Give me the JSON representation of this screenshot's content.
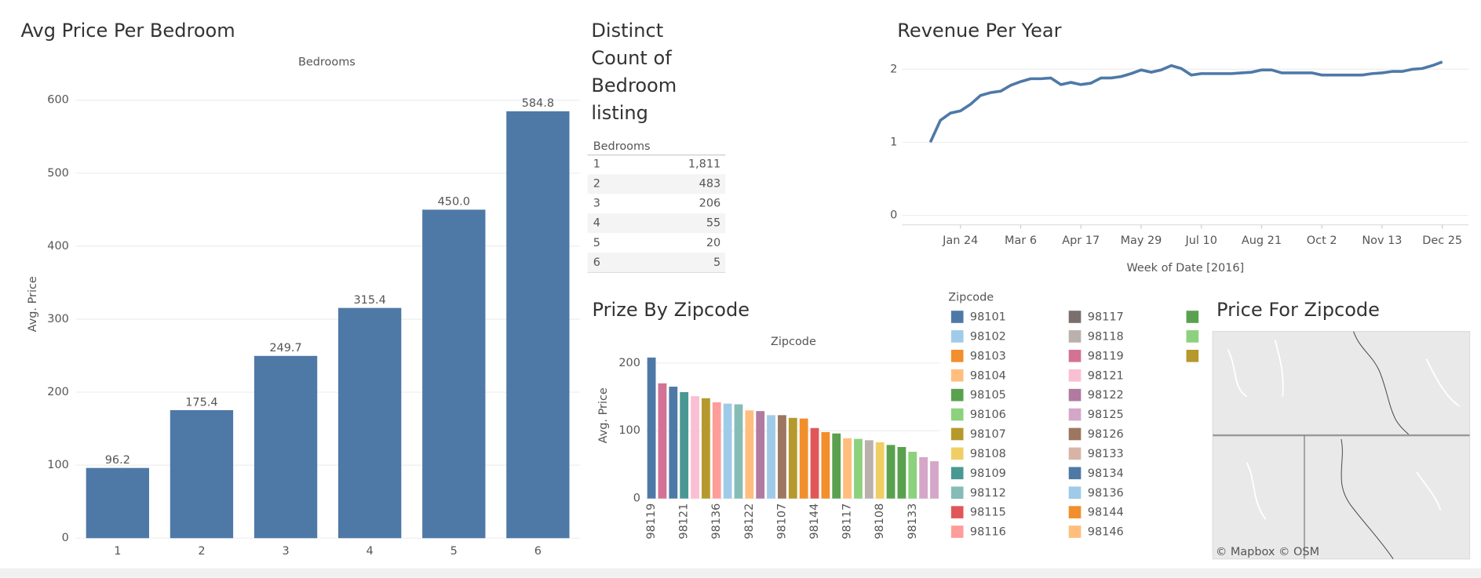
{
  "chart_data": [
    {
      "type": "bar",
      "title": "Avg Price Per Bedroom",
      "header": "Bedrooms",
      "y_label": "Avg. Price",
      "categories": [
        "1",
        "2",
        "3",
        "4",
        "5",
        "6"
      ],
      "values": [
        96.2,
        175.4,
        249.7,
        315.4,
        450.0,
        584.8
      ],
      "value_labels": [
        "96.2",
        "175.4",
        "249.7",
        "315.4",
        "450.0",
        "584.8"
      ],
      "color": "#4e79a7",
      "ylim": [
        0,
        640
      ],
      "yticks": [
        0,
        100,
        200,
        300,
        400,
        500,
        600
      ],
      "grid": true
    },
    {
      "type": "table",
      "title": "Distinct Count of Bedroom listing",
      "header": "Bedrooms",
      "rows": [
        [
          "1",
          "1,811"
        ],
        [
          "2",
          "483"
        ],
        [
          "3",
          "206"
        ],
        [
          "4",
          "55"
        ],
        [
          "5",
          "20"
        ],
        [
          "6",
          "5"
        ]
      ]
    },
    {
      "type": "line",
      "title": "Revenue Per Year",
      "x_label": "Week of Date [2016]",
      "x": [
        "Jan 3",
        "Jan 10",
        "Jan 17",
        "Jan 24",
        "Jan 31",
        "Feb 7",
        "Feb 14",
        "Feb 21",
        "Feb 28",
        "Mar 6",
        "Mar 13",
        "Mar 20",
        "Mar 27",
        "Apr 3",
        "Apr 10",
        "Apr 17",
        "Apr 24",
        "May 1",
        "May 8",
        "May 15",
        "May 22",
        "May 29",
        "Jun 5",
        "Jun 12",
        "Jun 19",
        "Jun 26",
        "Jul 3",
        "Jul 10",
        "Jul 17",
        "Jul 24",
        "Jul 31",
        "Aug 7",
        "Aug 14",
        "Aug 21",
        "Aug 28",
        "Sep 4",
        "Sep 11",
        "Sep 18",
        "Sep 25",
        "Oct 2",
        "Oct 9",
        "Oct 16",
        "Oct 23",
        "Oct 30",
        "Nov 6",
        "Nov 13",
        "Nov 20",
        "Nov 27",
        "Dec 4",
        "Dec 11",
        "Dec 18",
        "Dec 25"
      ],
      "xticks": [
        "Jan 24",
        "Mar 6",
        "Apr 17",
        "May 29",
        "Jul 10",
        "Aug 21",
        "Oct 2",
        "Nov 13",
        "Dec 25"
      ],
      "series": [
        {
          "color": "#4e79a7",
          "values": [
            1.0,
            1.3,
            1.4,
            1.43,
            1.52,
            1.64,
            1.68,
            1.7,
            1.78,
            1.83,
            1.87,
            1.87,
            1.88,
            1.79,
            1.82,
            1.79,
            1.81,
            1.88,
            1.88,
            1.9,
            1.94,
            1.99,
            1.96,
            1.99,
            2.05,
            2.01,
            1.92,
            1.94,
            1.94,
            1.94,
            1.94,
            1.95,
            1.96,
            1.99,
            1.99,
            1.95,
            1.95,
            1.95,
            1.95,
            1.92,
            1.92,
            1.92,
            1.92,
            1.92,
            1.94,
            1.95,
            1.97,
            1.97,
            2.0,
            2.01,
            2.05,
            2.1
          ]
        }
      ],
      "ylim": [
        -0.13,
        2.17
      ],
      "yticks": [
        0,
        1,
        2
      ],
      "grid": true
    },
    {
      "type": "bar",
      "title": "Prize By Zipcode",
      "header": "Zipcode",
      "y_label": "Avg. Price",
      "categories": [
        "98119",
        null,
        null,
        "98121",
        null,
        null,
        "98136",
        null,
        null,
        "98122",
        null,
        null,
        "98107",
        null,
        null,
        "98144",
        null,
        null,
        "98117",
        null,
        null,
        "98108",
        null,
        null,
        "98133",
        null,
        null
      ],
      "values": [
        208,
        170,
        165,
        157,
        151,
        148,
        142,
        140,
        139,
        130,
        129,
        123,
        123,
        119,
        118,
        104,
        98,
        96,
        89,
        88,
        86,
        83,
        79,
        76,
        69,
        61,
        55
      ],
      "colors": [
        "#4e79a7",
        "#d37295",
        "#4e79a7",
        "#499894",
        "#fabfd2",
        "#b6992d",
        "#ff9d9a",
        "#a0cbe8",
        "#86bcb6",
        "#ffbe7d",
        "#b07aa1",
        "#a0cbe8",
        "#9d7660",
        "#b6992d",
        "#f28e2b",
        "#e15759",
        "#f28e2b",
        "#59a14f",
        "#ffbe7d",
        "#8cd17d",
        "#bab0ac",
        "#f1ce63",
        "#59a14f",
        "#59a14f",
        "#8cd17d",
        "#d4a6c8",
        "#d4a6c8"
      ],
      "ylim": [
        0,
        220
      ],
      "yticks": [
        0,
        100,
        200
      ],
      "grid": true,
      "legend": {
        "title": "Zipcode",
        "items": [
          {
            "name": "98101",
            "color": "#4e79a7"
          },
          {
            "name": "98102",
            "color": "#a0cbe8"
          },
          {
            "name": "98103",
            "color": "#f28e2b"
          },
          {
            "name": "98104",
            "color": "#ffbe7d"
          },
          {
            "name": "98105",
            "color": "#59a14f"
          },
          {
            "name": "98106",
            "color": "#8cd17d"
          },
          {
            "name": "98107",
            "color": "#b6992d"
          },
          {
            "name": "98108",
            "color": "#f1ce63"
          },
          {
            "name": "98109",
            "color": "#499894"
          },
          {
            "name": "98112",
            "color": "#86bcb6"
          },
          {
            "name": "98115",
            "color": "#e15759"
          },
          {
            "name": "98116",
            "color": "#ff9d9a"
          },
          {
            "name": "98117",
            "color": "#79706e"
          },
          {
            "name": "98118",
            "color": "#bab0ac"
          },
          {
            "name": "98119",
            "color": "#d37295"
          },
          {
            "name": "98121",
            "color": "#fabfd2"
          },
          {
            "name": "98122",
            "color": "#b07aa1"
          },
          {
            "name": "98125",
            "color": "#d4a6c8"
          },
          {
            "name": "98126",
            "color": "#9d7660"
          },
          {
            "name": "98133",
            "color": "#d7b5a6"
          },
          {
            "name": "98134",
            "color": "#4e79a7"
          },
          {
            "name": "98136",
            "color": "#a0cbe8"
          },
          {
            "name": "98144",
            "color": "#f28e2b"
          },
          {
            "name": "98146",
            "color": "#ffbe7d"
          },
          {
            "name": null,
            "color": "#59a14f"
          },
          {
            "name": null,
            "color": "#8cd17d"
          },
          {
            "name": null,
            "color": "#b6992d"
          }
        ]
      }
    },
    {
      "type": "map",
      "title": "Price For Zipcode",
      "attribution": "© Mapbox © OSM"
    }
  ]
}
